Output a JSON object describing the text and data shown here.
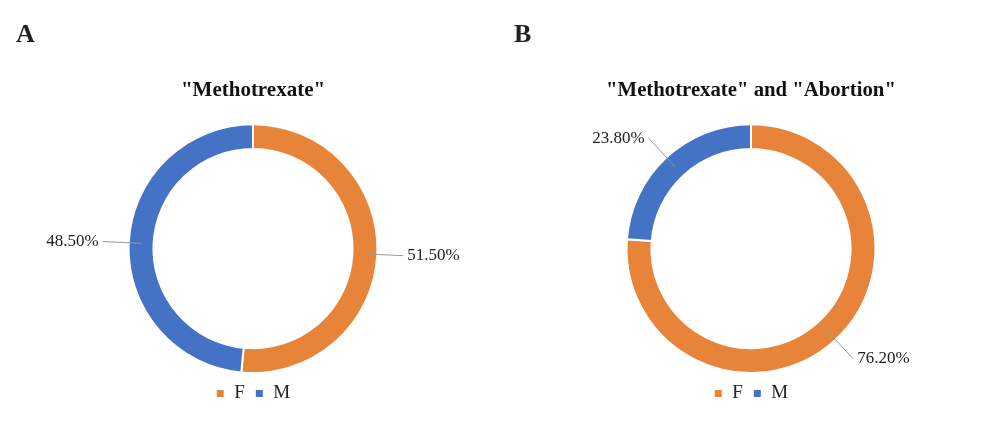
{
  "chart_data": [
    {
      "type": "donut",
      "title": "\"Methotrexate\"",
      "annotations": [
        "A"
      ],
      "categories": [
        "F",
        "M"
      ],
      "values": [
        51.5,
        48.5
      ],
      "colors": [
        "#e8833a",
        "#4472c4"
      ],
      "value_labels": [
        "51.50%",
        "48.50%"
      ],
      "legend": "bottom"
    },
    {
      "type": "donut",
      "title": "\"Methotrexate\" and \"Abortion\"",
      "annotations": [
        "B"
      ],
      "categories": [
        "F",
        "M"
      ],
      "values": [
        76.2,
        23.8
      ],
      "colors": [
        "#e8833a",
        "#4472c4"
      ],
      "value_labels": [
        "76.20%",
        "23.80%"
      ],
      "legend": "bottom"
    }
  ]
}
